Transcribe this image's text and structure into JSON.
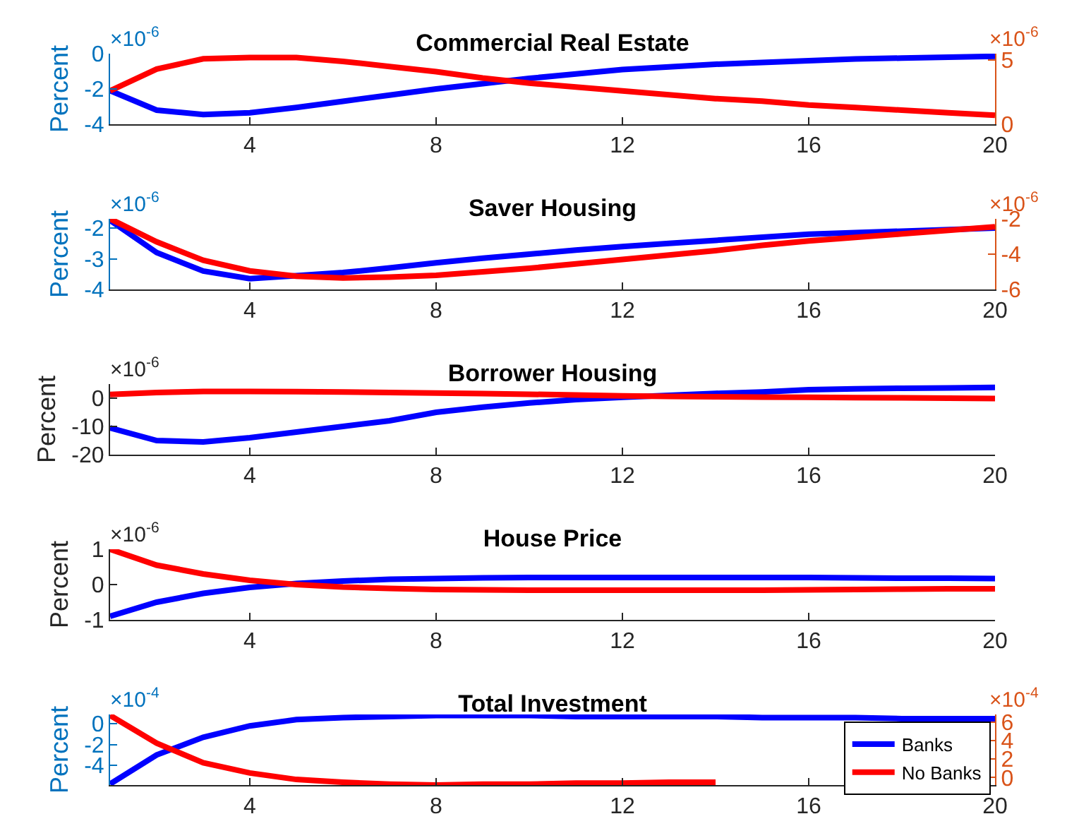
{
  "chart_data": [
    {
      "type": "line",
      "title": "Commercial Real Estate",
      "ylabel": "Percent",
      "annotations": [
        "×10$^{-6}$",
        "×10$^{-6}$"
      ],
      "x": [
        1,
        2,
        3,
        4,
        5,
        6,
        7,
        8,
        9,
        10,
        11,
        12,
        13,
        14,
        15,
        16,
        17,
        18,
        19,
        20
      ],
      "xlim": [
        1,
        20
      ],
      "xticks": [
        4,
        8,
        12,
        16,
        20
      ],
      "ylim": [
        -4,
        0
      ],
      "yticks": [
        -4,
        -2,
        0
      ],
      "y2lim": [
        0,
        5.5
      ],
      "y2ticks": [
        0,
        5
      ],
      "legend": false,
      "grid": false,
      "series": [
        {
          "color": "#0000ff",
          "values": [
            -2.1,
            -3.2,
            -3.45,
            -3.35,
            -3.05,
            -2.7,
            -2.35,
            -2.0,
            -1.7,
            -1.4,
            -1.15,
            -0.9,
            -0.75,
            -0.6,
            -0.5,
            -0.4,
            -0.3,
            -0.25,
            -0.2,
            -0.15
          ]
        },
        {
          "color": "#ff0000",
          "axis": "y2",
          "values": [
            2.6,
            4.3,
            5.1,
            5.2,
            5.2,
            4.9,
            4.5,
            4.1,
            3.6,
            3.2,
            2.9,
            2.6,
            2.3,
            2.0,
            1.8,
            1.5,
            1.3,
            1.1,
            0.9,
            0.7
          ]
        }
      ]
    },
    {
      "type": "line",
      "title": "Saver Housing",
      "ylabel": "Percent",
      "annotations": [
        "×10$^{-6}$",
        "×10$^{-6}$"
      ],
      "x": [
        1,
        2,
        3,
        4,
        5,
        6,
        7,
        8,
        9,
        10,
        11,
        12,
        13,
        14,
        15,
        16,
        17,
        18,
        19,
        20
      ],
      "xlim": [
        1,
        20
      ],
      "xticks": [
        4,
        8,
        12,
        16,
        20
      ],
      "ylim": [
        -4,
        -1.7
      ],
      "yticks": [
        -4,
        -3,
        -2
      ],
      "y2lim": [
        -6,
        -2
      ],
      "y2ticks": [
        -6,
        -4,
        -2
      ],
      "legend": false,
      "grid": false,
      "series": [
        {
          "color": "#0000ff",
          "values": [
            -1.75,
            -2.8,
            -3.4,
            -3.65,
            -3.55,
            -3.45,
            -3.3,
            -3.13,
            -2.98,
            -2.85,
            -2.72,
            -2.6,
            -2.5,
            -2.4,
            -2.3,
            -2.2,
            -2.15,
            -2.1,
            -2.05,
            -2.0
          ]
        },
        {
          "color": "#ff0000",
          "axis": "y2",
          "values": [
            -2.0,
            -3.3,
            -4.35,
            -4.95,
            -5.25,
            -5.35,
            -5.3,
            -5.2,
            -5.0,
            -4.8,
            -4.55,
            -4.3,
            -4.05,
            -3.8,
            -3.5,
            -3.25,
            -3.05,
            -2.85,
            -2.65,
            -2.45
          ]
        }
      ]
    },
    {
      "type": "line",
      "title": "Borrower Housing",
      "ylabel": "Percent",
      "annotations": [
        "×10$^{-6}$"
      ],
      "x": [
        1,
        2,
        3,
        4,
        5,
        6,
        7,
        8,
        9,
        10,
        11,
        12,
        13,
        14,
        15,
        16,
        17,
        18,
        19,
        20
      ],
      "xlim": [
        1,
        20
      ],
      "xticks": [
        4,
        8,
        12,
        16,
        20
      ],
      "ylim": [
        -20,
        5
      ],
      "yticks": [
        -20,
        -10,
        0
      ],
      "legend": false,
      "grid": false,
      "series": [
        {
          "color": "#0000ff",
          "values": [
            -10.5,
            -15,
            -15.5,
            -14,
            -12,
            -10,
            -8,
            -5,
            -3.2,
            -1.7,
            -0.5,
            0.3,
            1,
            1.7,
            2.2,
            3.0,
            3.3,
            3.5,
            3.6,
            3.8
          ]
        },
        {
          "color": "#ff0000",
          "values": [
            1.3,
            2.0,
            2.4,
            2.4,
            2.3,
            2.2,
            2.0,
            1.8,
            1.6,
            1.4,
            1.1,
            0.8,
            0.6,
            0.5,
            0.4,
            0.3,
            0.2,
            0.1,
            0.0,
            -0.1
          ]
        }
      ]
    },
    {
      "type": "line",
      "title": "House Price",
      "ylabel": "Percent",
      "annotations": [
        "×10$^{-6}$"
      ],
      "x": [
        1,
        2,
        3,
        4,
        5,
        6,
        7,
        8,
        9,
        10,
        11,
        12,
        13,
        14,
        15,
        16,
        17,
        18,
        19,
        20
      ],
      "xlim": [
        1,
        20
      ],
      "xticks": [
        4,
        8,
        12,
        16,
        20
      ],
      "ylim": [
        -1,
        1
      ],
      "yticks": [
        -1,
        0,
        1
      ],
      "legend": false,
      "grid": false,
      "series": [
        {
          "color": "#0000ff",
          "values": [
            -0.9,
            -0.5,
            -0.25,
            -0.08,
            0.03,
            0.1,
            0.15,
            0.17,
            0.19,
            0.2,
            0.2,
            0.2,
            0.2,
            0.2,
            0.2,
            0.2,
            0.19,
            0.18,
            0.18,
            0.17
          ]
        },
        {
          "color": "#ff0000",
          "values": [
            1.0,
            0.55,
            0.3,
            0.12,
            0.0,
            -0.07,
            -0.11,
            -0.14,
            -0.15,
            -0.16,
            -0.16,
            -0.16,
            -0.16,
            -0.16,
            -0.16,
            -0.15,
            -0.14,
            -0.13,
            -0.12,
            -0.12
          ]
        }
      ]
    },
    {
      "type": "line",
      "title": "Total Investment",
      "ylabel": "Percent",
      "annotations": [
        "×10$^{-4}$",
        "×10$^{-4}$"
      ],
      "x": [
        1,
        2,
        3,
        4,
        5,
        6,
        7,
        8,
        9,
        10,
        11,
        12,
        13,
        14,
        15,
        16,
        17,
        18,
        19,
        20
      ],
      "xlim": [
        1,
        20
      ],
      "xticks": [
        4,
        8,
        12,
        16,
        20
      ],
      "ylim": [
        -5.9,
        0.9
      ],
      "yticks": [
        -4,
        -2,
        0
      ],
      "y2lim": [
        -0.8,
        6.8
      ],
      "y2ticks": [
        0,
        2,
        4,
        6
      ],
      "legend": "bottom right",
      "grid": false,
      "series": [
        {
          "name": "Banks",
          "color": "#0000ff",
          "values": [
            -5.8,
            -3.0,
            -1.3,
            -0.2,
            0.4,
            0.6,
            0.7,
            0.8,
            0.8,
            0.8,
            0.7,
            0.7,
            0.7,
            0.7,
            0.6,
            0.6,
            0.6,
            0.5,
            0.5,
            0.5
          ]
        },
        {
          "name": "No Banks",
          "color": "#ff0000",
          "axis": "y2",
          "values": [
            6.7,
            3.7,
            1.6,
            0.5,
            -0.2,
            -0.5,
            -0.7,
            -0.8,
            -0.7,
            -0.7,
            -0.6,
            -0.6,
            -0.5,
            -0.5,
            null,
            null,
            null,
            null,
            null,
            null
          ]
        }
      ]
    }
  ]
}
